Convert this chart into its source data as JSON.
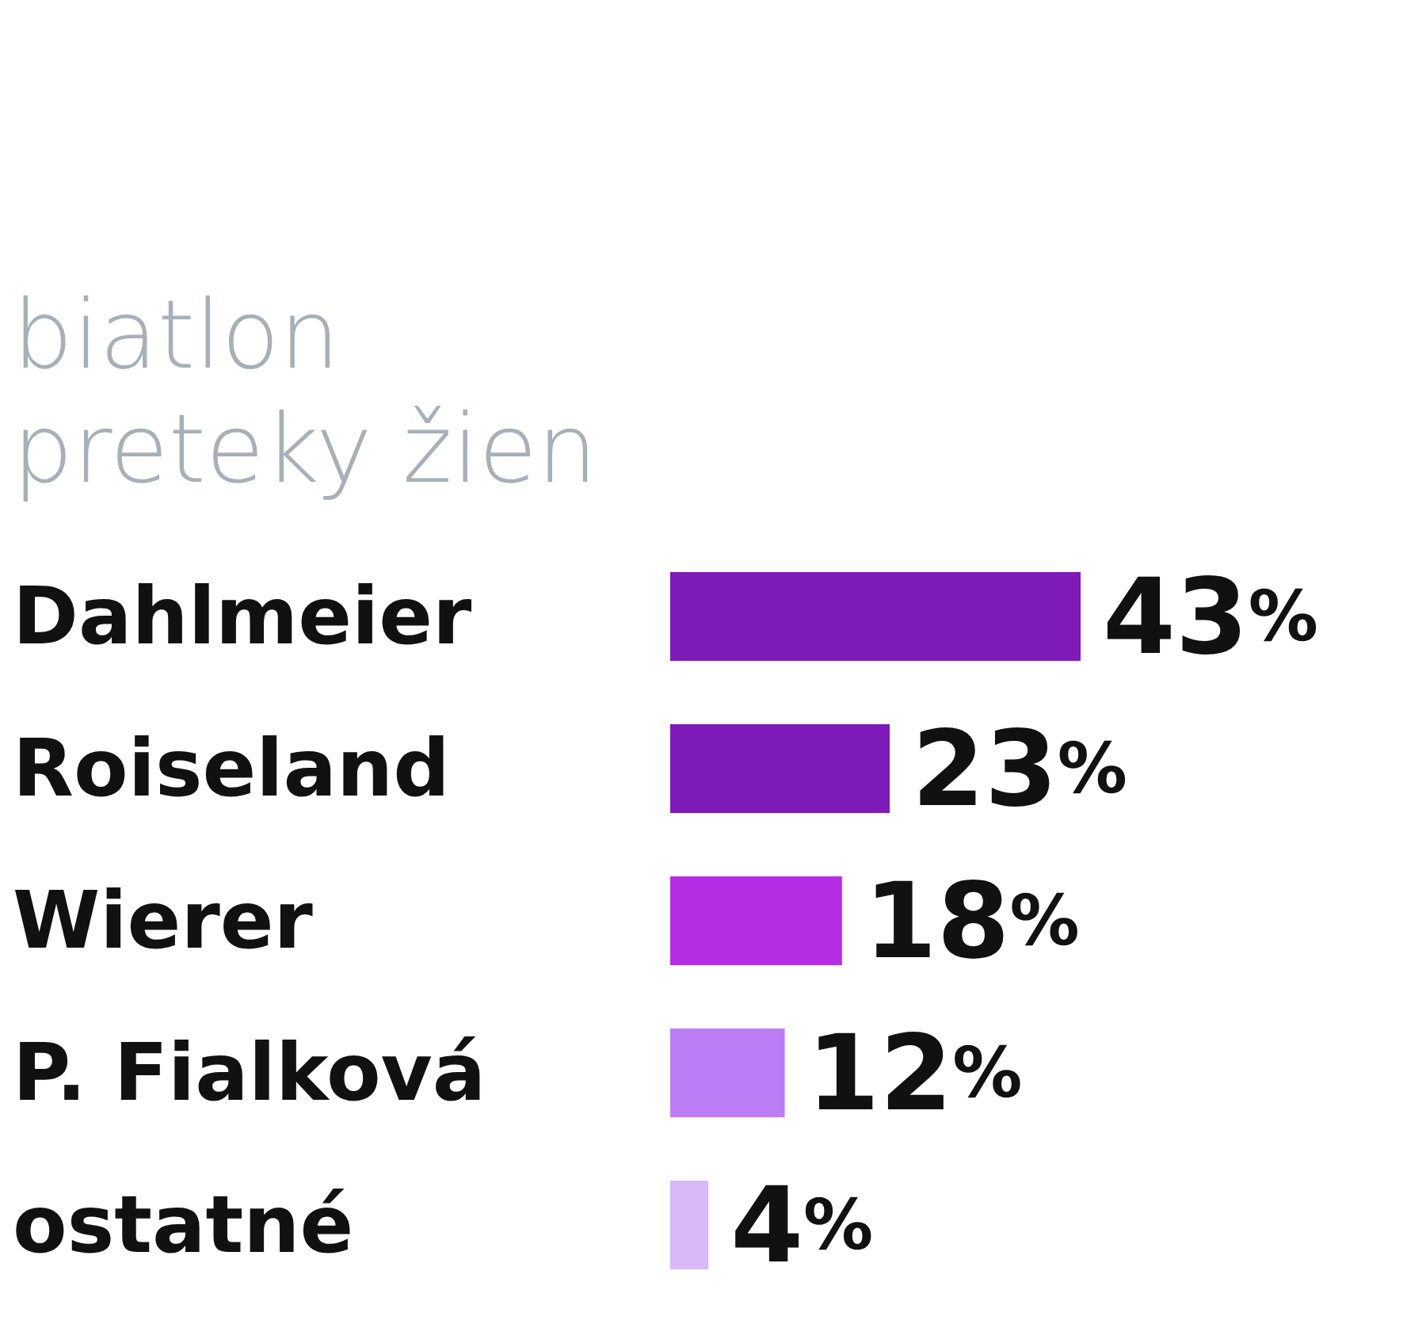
{
  "chart_data": {
    "type": "bar",
    "orientation": "horizontal",
    "title": "biatlon",
    "subtitle": "preteky žien",
    "categories": [
      "Dahlmeier",
      "Roiseland",
      "Wierer",
      "P. Fialková",
      "ostatné"
    ],
    "values": [
      43,
      23,
      18,
      12,
      4
    ],
    "colors": [
      "#7e1ab8",
      "#7e1ab8",
      "#b52ee6",
      "#bb7cf5",
      "#d9b8f7"
    ],
    "value_labels": [
      "43%",
      "23%",
      "18%",
      "12%",
      "4%"
    ],
    "tick_labels": "y"
  }
}
